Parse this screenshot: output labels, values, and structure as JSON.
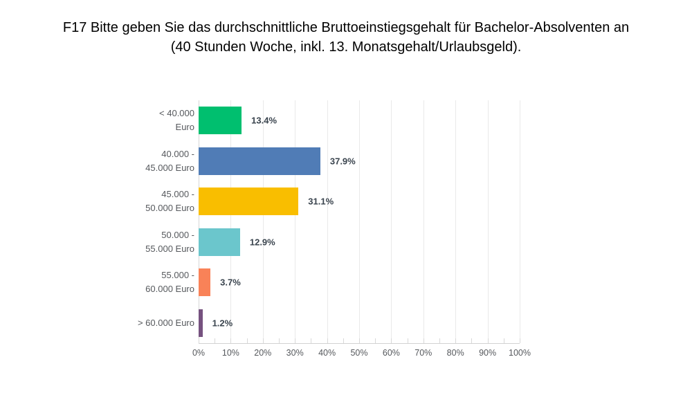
{
  "chart_data": {
    "type": "bar",
    "orientation": "horizontal",
    "title": "F17 Bitte geben Sie das durchschnittliche Bruttoeinstiegsgehalt für Bachelor-Absolventen an (40 Stunden Woche, inkl. 13. Monatsgehalt/Urlaubsgeld).",
    "title_lines": [
      "F17 Bitte geben Sie das durchschnittliche Bruttoeinstiegsgehalt für Bachelor-Absolventen an",
      "(40 Stunden Woche, inkl. 13. Monatsgehalt/Urlaubsgeld)."
    ],
    "categories": [
      "< 40.000 Euro",
      "40.000 - 45.000 Euro",
      "45.000 - 50.000 Euro",
      "50.000 - 55.000 Euro",
      "55.000 - 60.000 Euro",
      "> 60.000 Euro"
    ],
    "category_lines": [
      [
        "< 40.000",
        "Euro"
      ],
      [
        "40.000 -",
        "45.000 Euro"
      ],
      [
        "45.000 -",
        "50.000 Euro"
      ],
      [
        "50.000 -",
        "55.000 Euro"
      ],
      [
        "55.000 -",
        "60.000 Euro"
      ],
      [
        "> 60.000 Euro"
      ]
    ],
    "values": [
      13.4,
      37.9,
      31.1,
      12.9,
      3.7,
      1.2
    ],
    "value_labels": [
      "13.4%",
      "37.9%",
      "31.1%",
      "12.9%",
      "3.7%",
      "1.2%"
    ],
    "bar_colors": [
      "#00BF6F",
      "#507CB6",
      "#F9BE00",
      "#6BC6CC",
      "#F98258",
      "#76527F"
    ],
    "x_ticks": [
      "0%",
      "10%",
      "20%",
      "30%",
      "40%",
      "50%",
      "60%",
      "70%",
      "80%",
      "90%",
      "100%"
    ],
    "xlim": [
      0,
      100
    ],
    "minor_tick_step_percent": 5,
    "grid": true,
    "legend": "none",
    "colors": {
      "background": "#ffffff",
      "title_text": "#000000",
      "category_text": "#55585c",
      "value_text": "#3a444e",
      "axis_text": "#55585c",
      "gridline": "#e9e9e9",
      "axis_line": "#d2d2d2"
    }
  }
}
